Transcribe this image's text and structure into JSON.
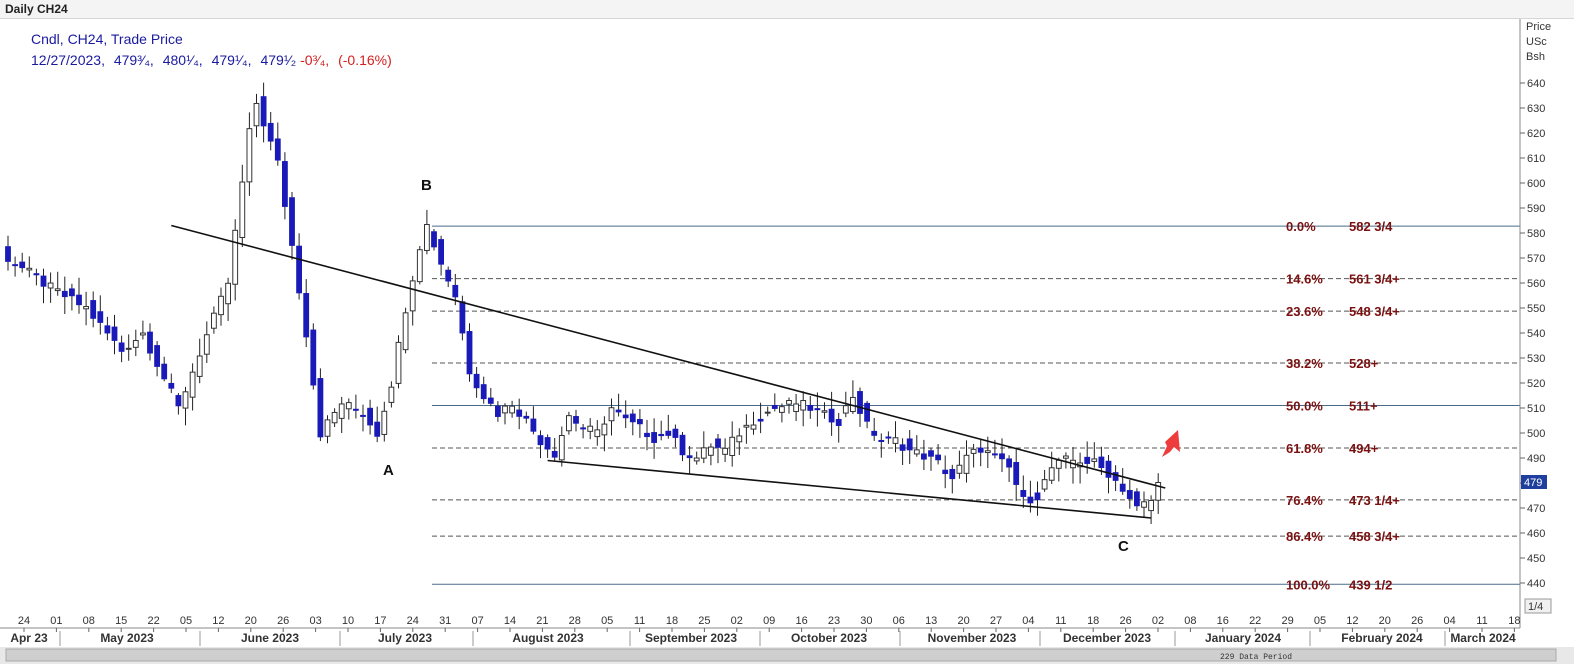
{
  "window": {
    "title": "Daily CH24"
  },
  "legend": {
    "line1": "Cndl, CH24, Trade Price",
    "date": "12/27/2023,",
    "open": "479³⁄₄,",
    "high": "480¹⁄₄,",
    "low": "479¹⁄₄,",
    "close": "479¹⁄₂",
    "change": "-0³⁄₄,",
    "change_pct": "(-0.16%)"
  },
  "price_axis": {
    "label_lines": [
      "Price",
      "USc",
      "Bsh"
    ],
    "current_price_tag": "479",
    "page_indicator": "1/4"
  },
  "status": {
    "data_period": "229 Data Period"
  },
  "waves": {
    "a": "A",
    "b": "B",
    "c": "C"
  },
  "colors": {
    "bull_candle": "#ffffff",
    "bear_candle": "#1a1ab8",
    "fib_text": "#7a1010",
    "arrow": "#ee3b3b",
    "legend_blue": "#1a1aa0",
    "legend_red": "#d42020"
  },
  "chart_data": {
    "type": "candlestick",
    "y_ticks": [
      440,
      450,
      460,
      470,
      480,
      490,
      500,
      510,
      520,
      530,
      540,
      550,
      560,
      570,
      580,
      590,
      600,
      610,
      620,
      630,
      640
    ],
    "ylim": [
      433,
      645
    ],
    "day_ticks": [
      "24",
      "01",
      "08",
      "15",
      "22",
      "05",
      "12",
      "20",
      "26",
      "03",
      "10",
      "17",
      "24",
      "31",
      "07",
      "14",
      "21",
      "28",
      "05",
      "11",
      "18",
      "25",
      "02",
      "09",
      "16",
      "23",
      "30",
      "06",
      "13",
      "20",
      "27",
      "04",
      "11",
      "18",
      "26",
      "02",
      "08",
      "16",
      "22",
      "29",
      "05",
      "12",
      "20",
      "26",
      "04",
      "11",
      "18"
    ],
    "months": [
      "Apr 23",
      "May 2023",
      "June 2023",
      "July 2023",
      "August 2023",
      "September 2023",
      "October 2023",
      "November 2023",
      "December 2023",
      "January 2024",
      "February 2024",
      "March 2024"
    ],
    "fib_levels": [
      {
        "pct": "0.0%",
        "label": "582 3/4",
        "price": 582.75,
        "style": "solid"
      },
      {
        "pct": "14.6%",
        "label": "561 3/4+",
        "price": 561.75,
        "style": "dashed"
      },
      {
        "pct": "23.6%",
        "label": "548 3/4+",
        "price": 548.75,
        "style": "dashed"
      },
      {
        "pct": "38.2%",
        "label": "528+",
        "price": 528,
        "style": "dashed"
      },
      {
        "pct": "50.0%",
        "label": "511+",
        "price": 511,
        "style": "solid"
      },
      {
        "pct": "61.8%",
        "label": "494+",
        "price": 494,
        "style": "dashed"
      },
      {
        "pct": "76.4%",
        "label": "473 1/4+",
        "price": 473.25,
        "style": "dashed"
      },
      {
        "pct": "86.4%",
        "label": "458 3/4+",
        "price": 458.75,
        "style": "dashed"
      },
      {
        "pct": "100.0%",
        "label": "439 1/2",
        "price": 439.5,
        "style": "solid"
      }
    ],
    "trendlines": [
      {
        "from": [
          23,
          583
        ],
        "to": [
          163,
          478
        ]
      },
      {
        "from": [
          76,
          489
        ],
        "to": [
          161,
          466
        ]
      }
    ],
    "anchors": [
      [
        0,
        570
      ],
      [
        6,
        558
      ],
      [
        11,
        550
      ],
      [
        16,
        533
      ],
      [
        19,
        540
      ],
      [
        24,
        510
      ],
      [
        27,
        532
      ],
      [
        31,
        560
      ],
      [
        34,
        620
      ],
      [
        35,
        632
      ],
      [
        38,
        608
      ],
      [
        40,
        575
      ],
      [
        42,
        540
      ],
      [
        44,
        500
      ],
      [
        47,
        512
      ],
      [
        50,
        508
      ],
      [
        52,
        500
      ],
      [
        54,
        520
      ],
      [
        56,
        550
      ],
      [
        58,
        575
      ],
      [
        59,
        583
      ],
      [
        61,
        568
      ],
      [
        63,
        555
      ],
      [
        65,
        525
      ],
      [
        67,
        515
      ],
      [
        69,
        508
      ],
      [
        71,
        512
      ],
      [
        73,
        505
      ],
      [
        75,
        497
      ],
      [
        77,
        492
      ],
      [
        79,
        507
      ],
      [
        81,
        502
      ],
      [
        83,
        500
      ],
      [
        85,
        510
      ],
      [
        87,
        505
      ],
      [
        89,
        502
      ],
      [
        91,
        498
      ],
      [
        93,
        500
      ],
      [
        95,
        493
      ],
      [
        97,
        490
      ],
      [
        99,
        495
      ],
      [
        101,
        493
      ],
      [
        103,
        500
      ],
      [
        105,
        505
      ],
      [
        108,
        510
      ],
      [
        111,
        512
      ],
      [
        113,
        510
      ],
      [
        115,
        507
      ],
      [
        117,
        505
      ],
      [
        119,
        515
      ],
      [
        121,
        503
      ],
      [
        123,
        497
      ],
      [
        125,
        497
      ],
      [
        127,
        493
      ],
      [
        129,
        491
      ],
      [
        131,
        488
      ],
      [
        133,
        482
      ],
      [
        135,
        490
      ],
      [
        137,
        494
      ],
      [
        139,
        490
      ],
      [
        141,
        486
      ],
      [
        143,
        473
      ],
      [
        145,
        475
      ],
      [
        147,
        486
      ],
      [
        149,
        489
      ],
      [
        151,
        489
      ],
      [
        153,
        488
      ],
      [
        155,
        484
      ],
      [
        157,
        478
      ],
      [
        159,
        470
      ],
      [
        161,
        473
      ],
      [
        162,
        479.5
      ]
    ]
  }
}
